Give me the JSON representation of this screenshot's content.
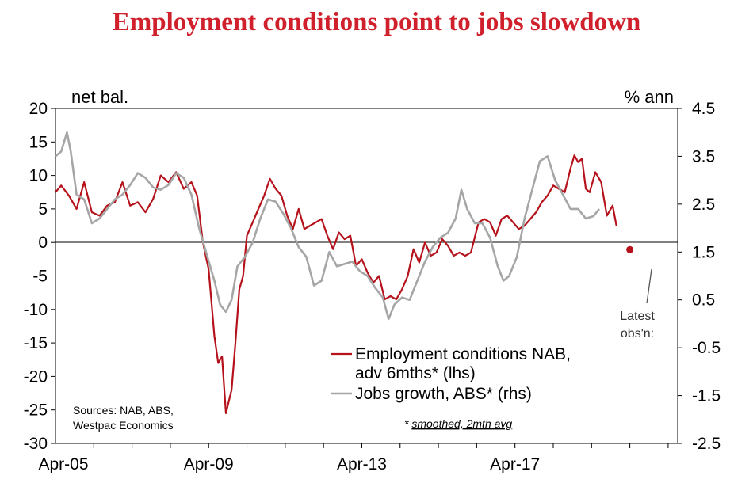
{
  "chart_data": {
    "type": "line",
    "title": "Employment conditions point to jobs slowdown",
    "left_unit": "net bal.",
    "right_unit": "% ann",
    "x_range": [
      2005.25,
      2021.5
    ],
    "x_ticks": [
      {
        "label": "Apr-05",
        "x": 2005.25
      },
      {
        "label": "Apr-09",
        "x": 2009.25
      },
      {
        "label": "Apr-13",
        "x": 2013.25
      },
      {
        "label": "Apr-17",
        "x": 2017.25
      }
    ],
    "y_left": {
      "min": -30,
      "max": 20,
      "ticks": [
        "20",
        "15",
        "10",
        "5",
        "0",
        "-5",
        "-10",
        "-15",
        "-20",
        "-25",
        "-30"
      ]
    },
    "y_right": {
      "min": -2.5,
      "max": 4.5,
      "ticks": [
        "4.5",
        "3.5",
        "2.5",
        "1.5",
        "0.5",
        "-0.5",
        "-1.5",
        "-2.5"
      ]
    },
    "series": [
      {
        "name": "Employment conditions NAB, adv 6mths* (lhs)",
        "color": "#b5121b",
        "axis": "left",
        "points": [
          [
            2005.25,
            7.5
          ],
          [
            2005.4,
            8.5
          ],
          [
            2005.6,
            7
          ],
          [
            2005.8,
            5
          ],
          [
            2006.0,
            9
          ],
          [
            2006.2,
            4.5
          ],
          [
            2006.4,
            4
          ],
          [
            2006.6,
            5.5
          ],
          [
            2006.8,
            6
          ],
          [
            2007.0,
            9
          ],
          [
            2007.2,
            5.5
          ],
          [
            2007.4,
            6
          ],
          [
            2007.6,
            4.5
          ],
          [
            2007.8,
            6.5
          ],
          [
            2008.0,
            10
          ],
          [
            2008.2,
            9
          ],
          [
            2008.4,
            10.5
          ],
          [
            2008.6,
            8
          ],
          [
            2008.8,
            9
          ],
          [
            2008.95,
            7
          ],
          [
            2009.1,
            0
          ],
          [
            2009.25,
            -4
          ],
          [
            2009.4,
            -14
          ],
          [
            2009.5,
            -18
          ],
          [
            2009.6,
            -17
          ],
          [
            2009.7,
            -25.5
          ],
          [
            2009.85,
            -22
          ],
          [
            2009.95,
            -15
          ],
          [
            2010.05,
            -7
          ],
          [
            2010.15,
            -5
          ],
          [
            2010.25,
            1
          ],
          [
            2010.4,
            3
          ],
          [
            2010.55,
            5
          ],
          [
            2010.7,
            7
          ],
          [
            2010.85,
            9.5
          ],
          [
            2011.0,
            8
          ],
          [
            2011.15,
            7
          ],
          [
            2011.3,
            4
          ],
          [
            2011.45,
            2
          ],
          [
            2011.6,
            5
          ],
          [
            2011.75,
            2
          ],
          [
            2011.9,
            2.5
          ],
          [
            2012.05,
            3
          ],
          [
            2012.2,
            3.5
          ],
          [
            2012.35,
            1
          ],
          [
            2012.5,
            -1
          ],
          [
            2012.65,
            1.5
          ],
          [
            2012.8,
            0.5
          ],
          [
            2012.95,
            1
          ],
          [
            2013.1,
            -3.5
          ],
          [
            2013.25,
            -2.5
          ],
          [
            2013.4,
            -4.5
          ],
          [
            2013.55,
            -6
          ],
          [
            2013.7,
            -5
          ],
          [
            2013.85,
            -8.5
          ],
          [
            2014.0,
            -8
          ],
          [
            2014.15,
            -8.5
          ],
          [
            2014.3,
            -7
          ],
          [
            2014.45,
            -5
          ],
          [
            2014.6,
            -1
          ],
          [
            2014.75,
            -3
          ],
          [
            2014.9,
            0
          ],
          [
            2015.05,
            -2
          ],
          [
            2015.2,
            -1.5
          ],
          [
            2015.35,
            0.5
          ],
          [
            2015.5,
            -0.5
          ],
          [
            2015.65,
            -2
          ],
          [
            2015.8,
            -1.5
          ],
          [
            2015.95,
            -2
          ],
          [
            2016.1,
            -1.5
          ],
          [
            2016.3,
            3
          ],
          [
            2016.45,
            3.5
          ],
          [
            2016.6,
            3
          ],
          [
            2016.75,
            1
          ],
          [
            2016.9,
            3.5
          ],
          [
            2017.05,
            4
          ],
          [
            2017.2,
            3
          ],
          [
            2017.35,
            2
          ],
          [
            2017.5,
            2.5
          ],
          [
            2017.65,
            3.5
          ],
          [
            2017.8,
            4.5
          ],
          [
            2017.95,
            6
          ],
          [
            2018.1,
            7
          ],
          [
            2018.25,
            8.5
          ],
          [
            2018.4,
            8
          ],
          [
            2018.55,
            7.5
          ],
          [
            2018.7,
            11
          ],
          [
            2018.8,
            13
          ],
          [
            2018.9,
            12
          ],
          [
            2019.0,
            12.5
          ],
          [
            2019.1,
            8
          ],
          [
            2019.2,
            7.5
          ],
          [
            2019.35,
            10.5
          ],
          [
            2019.5,
            9
          ],
          [
            2019.65,
            4
          ],
          [
            2019.8,
            5.5
          ],
          [
            2019.9,
            2.5
          ]
        ]
      },
      {
        "name": "Jobs growth, ABS* (rhs)",
        "color": "#a6a6a6",
        "axis": "right",
        "points": [
          [
            2005.25,
            3.5
          ],
          [
            2005.4,
            3.6
          ],
          [
            2005.55,
            4.0
          ],
          [
            2005.65,
            3.6
          ],
          [
            2005.8,
            2.7
          ],
          [
            2006.0,
            2.6
          ],
          [
            2006.2,
            2.1
          ],
          [
            2006.4,
            2.2
          ],
          [
            2006.6,
            2.4
          ],
          [
            2006.8,
            2.6
          ],
          [
            2007.0,
            2.7
          ],
          [
            2007.2,
            2.9
          ],
          [
            2007.4,
            3.15
          ],
          [
            2007.6,
            3.05
          ],
          [
            2007.8,
            2.85
          ],
          [
            2008.0,
            2.8
          ],
          [
            2008.2,
            2.9
          ],
          [
            2008.4,
            3.15
          ],
          [
            2008.6,
            3.05
          ],
          [
            2008.8,
            2.7
          ],
          [
            2009.0,
            2.0
          ],
          [
            2009.2,
            1.45
          ],
          [
            2009.4,
            0.9
          ],
          [
            2009.55,
            0.4
          ],
          [
            2009.7,
            0.25
          ],
          [
            2009.85,
            0.5
          ],
          [
            2010.0,
            1.2
          ],
          [
            2010.2,
            1.4
          ],
          [
            2010.4,
            1.7
          ],
          [
            2010.6,
            2.2
          ],
          [
            2010.8,
            2.6
          ],
          [
            2011.0,
            2.55
          ],
          [
            2011.2,
            2.3
          ],
          [
            2011.4,
            2.0
          ],
          [
            2011.6,
            1.6
          ],
          [
            2011.8,
            1.4
          ],
          [
            2012.0,
            0.8
          ],
          [
            2012.2,
            0.9
          ],
          [
            2012.4,
            1.5
          ],
          [
            2012.6,
            1.2
          ],
          [
            2012.8,
            1.25
          ],
          [
            2013.0,
            1.3
          ],
          [
            2013.2,
            1.1
          ],
          [
            2013.4,
            1.0
          ],
          [
            2013.6,
            0.75
          ],
          [
            2013.8,
            0.55
          ],
          [
            2013.95,
            0.1
          ],
          [
            2014.1,
            0.4
          ],
          [
            2014.3,
            0.55
          ],
          [
            2014.5,
            0.5
          ],
          [
            2014.7,
            0.9
          ],
          [
            2014.9,
            1.3
          ],
          [
            2015.1,
            1.6
          ],
          [
            2015.3,
            1.8
          ],
          [
            2015.5,
            1.9
          ],
          [
            2015.7,
            2.2
          ],
          [
            2015.85,
            2.8
          ],
          [
            2016.0,
            2.4
          ],
          [
            2016.2,
            2.1
          ],
          [
            2016.4,
            2.1
          ],
          [
            2016.6,
            1.8
          ],
          [
            2016.8,
            1.2
          ],
          [
            2016.95,
            0.9
          ],
          [
            2017.1,
            1.0
          ],
          [
            2017.3,
            1.4
          ],
          [
            2017.5,
            2.2
          ],
          [
            2017.7,
            2.8
          ],
          [
            2017.9,
            3.4
          ],
          [
            2018.1,
            3.5
          ],
          [
            2018.3,
            3.0
          ],
          [
            2018.5,
            2.7
          ],
          [
            2018.7,
            2.4
          ],
          [
            2018.9,
            2.4
          ],
          [
            2019.1,
            2.2
          ],
          [
            2019.3,
            2.25
          ],
          [
            2019.45,
            2.4
          ]
        ]
      }
    ],
    "latest_obs": {
      "x": 2020.25,
      "y": 1.55,
      "axis": "right",
      "color": "#b5121b",
      "label_line1": "Latest",
      "label_line2": "obs'n:"
    },
    "legend_placement": "lower-right"
  },
  "sources": {
    "line1": "Sources: NAB, ABS,",
    "line2": "Westpac Economics"
  },
  "footnote": "* smoothed, 2mth avg"
}
